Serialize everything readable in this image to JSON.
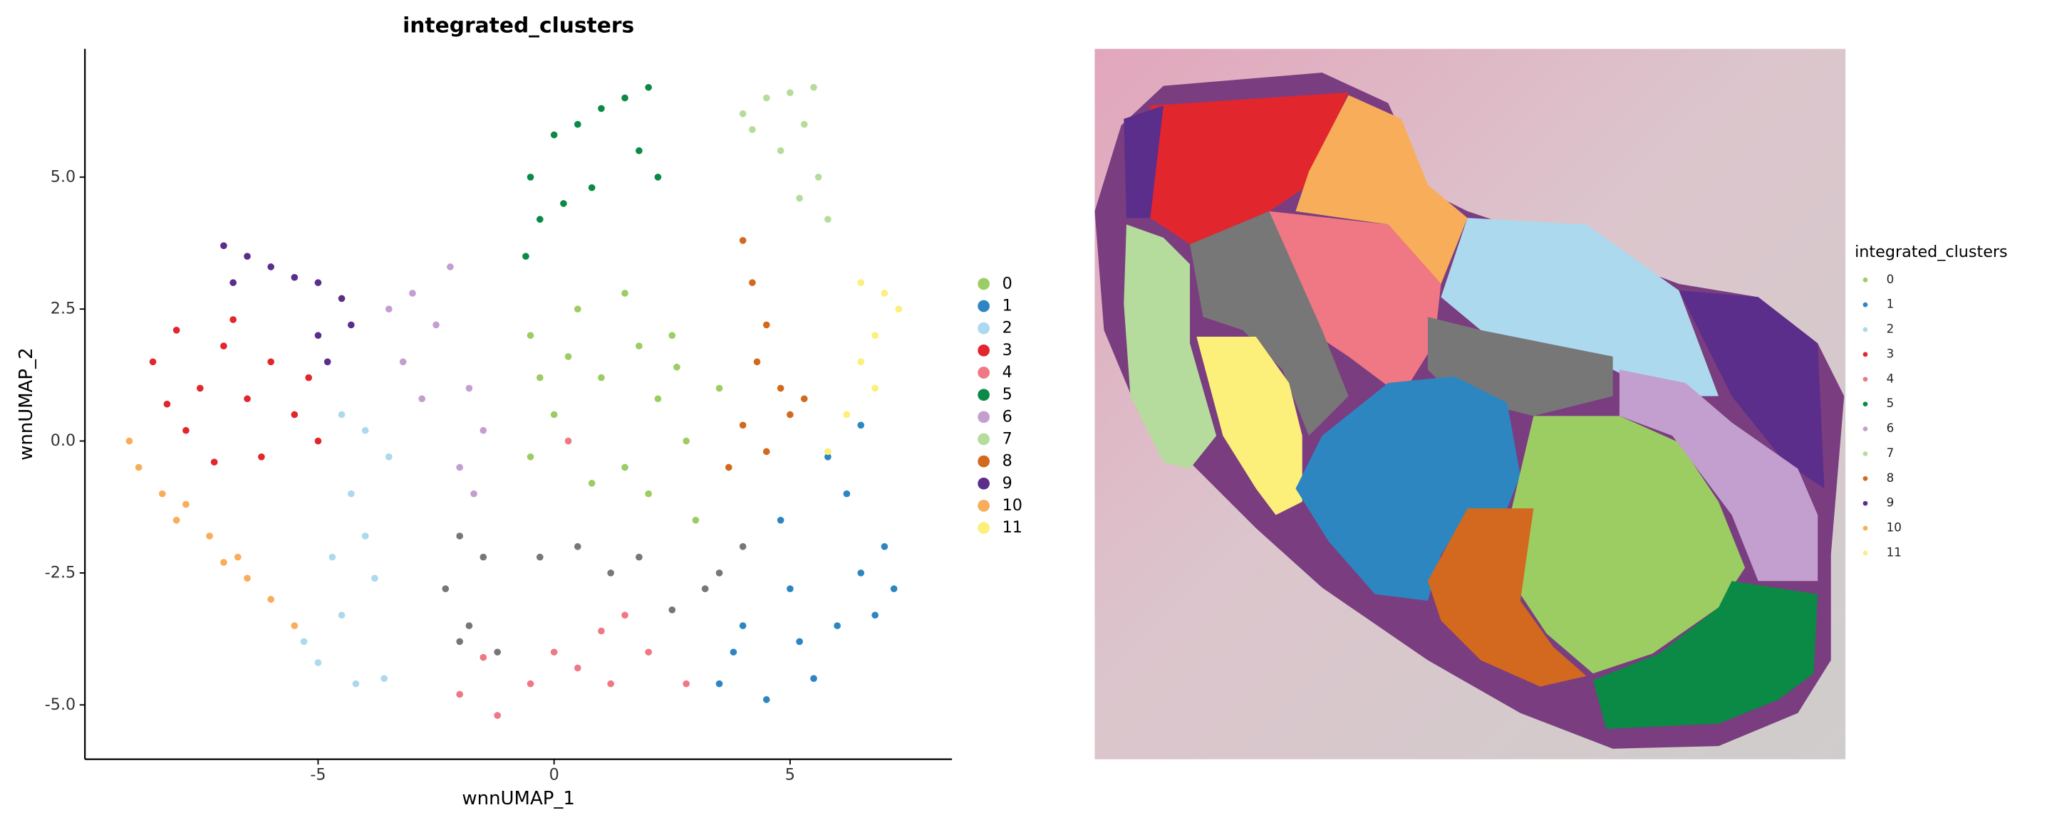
{
  "chart_data": [
    {
      "type": "scatter",
      "title": "integrated_clusters",
      "x_label": "wnnUMAP_1",
      "y_label": "wnnUMAP_2",
      "xlim": [
        -9.94,
        8.43
      ],
      "ylim": [
        -6.03,
        7.43
      ],
      "xticks": [
        -5,
        0,
        5
      ],
      "yticks": [
        {
          "value": 5,
          "label": "5.0"
        },
        2.5,
        {
          "value": 0,
          "label": "0.0"
        },
        -2.5,
        {
          "value": -5,
          "label": "-5.0"
        }
      ],
      "series": [
        {
          "name": "0",
          "color": "#9bcd63",
          "x": [
            -0.5,
            0.5,
            1.5,
            2.5,
            3.5,
            2.8,
            1.5,
            0.0,
            -0.5,
            1.0,
            2.0,
            3.0,
            0.8,
            2.2,
            -0.3,
            1.8,
            0.3,
            2.6
          ],
          "y": [
            2.0,
            2.5,
            2.8,
            2.0,
            1.0,
            0.0,
            -0.5,
            0.5,
            -0.3,
            1.2,
            -1.0,
            -1.5,
            -0.8,
            0.8,
            1.2,
            1.8,
            1.6,
            1.4
          ]
        },
        {
          "name": "1",
          "color": "#2e86c1",
          "x": [
            3.5,
            4.5,
            5.5,
            6.0,
            6.5,
            7.0,
            6.2,
            5.0,
            4.0,
            3.8,
            5.2,
            6.8,
            5.8,
            4.8,
            6.5,
            7.2
          ],
          "y": [
            -4.6,
            -4.9,
            -4.5,
            -3.5,
            -2.5,
            -2.0,
            -1.0,
            -2.8,
            -3.5,
            -4.0,
            -3.8,
            -3.3,
            -0.3,
            -1.5,
            0.3,
            -2.8
          ]
        },
        {
          "name": "2",
          "color": "#acd9ed",
          "x": [
            -4.5,
            -4.0,
            -3.5,
            -4.3,
            -4.0,
            -3.8,
            -4.5,
            -5.0,
            -5.3,
            -4.7,
            -3.6,
            -4.2
          ],
          "y": [
            0.5,
            0.2,
            -0.3,
            -1.0,
            -1.8,
            -2.6,
            -3.3,
            -4.2,
            -3.8,
            -2.2,
            -4.5,
            -4.6
          ]
        },
        {
          "name": "3",
          "color": "#e2262d",
          "x": [
            -8.5,
            -8.0,
            -7.5,
            -7.0,
            -6.5,
            -6.0,
            -5.5,
            -5.0,
            -7.8,
            -6.8,
            -6.2,
            -5.2,
            -7.2,
            -8.2
          ],
          "y": [
            1.5,
            2.1,
            1.0,
            1.8,
            0.8,
            1.5,
            0.5,
            0.0,
            0.2,
            2.3,
            -0.3,
            1.2,
            -0.4,
            0.7
          ]
        },
        {
          "name": "4",
          "color": "#f07784",
          "x": [
            -2.0,
            -1.2,
            -0.5,
            0.5,
            1.0,
            1.5,
            2.0,
            2.8,
            -1.5,
            0.0,
            1.2,
            0.3
          ],
          "y": [
            -4.8,
            -5.2,
            -4.6,
            -4.3,
            -3.6,
            -3.3,
            -4.0,
            -4.6,
            -4.1,
            -4.0,
            -4.6,
            0.0
          ]
        },
        {
          "name": "5",
          "color": "#0a8a45",
          "x": [
            -0.5,
            0.0,
            0.5,
            1.0,
            1.5,
            2.0,
            1.8,
            0.2,
            -0.3,
            0.8,
            2.2,
            -0.6
          ],
          "y": [
            5.0,
            5.8,
            6.0,
            6.3,
            6.5,
            6.7,
            5.5,
            4.5,
            4.2,
            4.8,
            5.0,
            3.5
          ]
        },
        {
          "name": "6",
          "color": "#c39fcf",
          "x": [
            -3.5,
            -3.0,
            -2.5,
            -3.2,
            -2.8,
            -1.8,
            -1.5,
            -2.0,
            -1.7,
            -2.2
          ],
          "y": [
            2.5,
            2.8,
            2.2,
            1.5,
            0.8,
            1.0,
            0.2,
            -0.5,
            -1.0,
            3.3
          ]
        },
        {
          "name": "7",
          "color": "#b5dc9c",
          "x": [
            4.0,
            4.5,
            5.0,
            5.3,
            5.6,
            5.2,
            5.8,
            4.8,
            4.2,
            5.5
          ],
          "y": [
            6.2,
            6.5,
            6.6,
            6.0,
            5.0,
            4.6,
            4.2,
            5.5,
            5.9,
            6.7
          ]
        },
        {
          "name": "8",
          "color": "#d2691e",
          "x": [
            4.0,
            4.2,
            4.5,
            4.3,
            4.8,
            5.0,
            5.3,
            4.5,
            3.7,
            4.0
          ],
          "y": [
            3.8,
            3.0,
            2.2,
            1.5,
            1.0,
            0.5,
            0.8,
            -0.2,
            -0.5,
            0.3
          ]
        },
        {
          "name": "9",
          "color": "#5a2e8a",
          "x": [
            -7.0,
            -6.5,
            -6.0,
            -5.5,
            -5.0,
            -4.5,
            -4.3,
            -5.0,
            -6.8,
            -4.8
          ],
          "y": [
            3.7,
            3.5,
            3.3,
            3.1,
            3.0,
            2.7,
            2.2,
            2.0,
            3.0,
            1.5
          ]
        },
        {
          "name": "10",
          "color": "#f8ad5a",
          "x": [
            -9.0,
            -8.8,
            -8.3,
            -7.8,
            -7.3,
            -7.0,
            -6.5,
            -6.0,
            -5.5,
            -8.0,
            -6.7
          ],
          "y": [
            0.0,
            -0.5,
            -1.0,
            -1.2,
            -1.8,
            -2.3,
            -2.6,
            -3.0,
            -3.5,
            -1.5,
            -2.2
          ]
        },
        {
          "name": "11",
          "color": "#fcef7a",
          "x": [
            6.5,
            7.0,
            7.3,
            6.8,
            6.5,
            6.8,
            6.2,
            5.8
          ],
          "y": [
            3.0,
            2.8,
            2.5,
            2.0,
            1.5,
            1.0,
            0.5,
            -0.2
          ]
        },
        {
          "color": "#777777",
          "x": [
            -2.0,
            -1.5,
            -2.3,
            -1.8,
            -1.2,
            -0.3,
            0.5,
            1.2,
            1.8,
            3.5,
            4.0,
            3.2,
            -2.0,
            2.5
          ],
          "y": [
            -1.8,
            -2.2,
            -2.8,
            -3.5,
            -4.0,
            -2.2,
            -2.0,
            -2.5,
            -2.2,
            -2.5,
            -2.0,
            -2.8,
            -3.8,
            -3.2
          ]
        }
      ]
    },
    {
      "type": "spatial",
      "legend_title": "integrated_clusters",
      "series": [
        {
          "name": "0",
          "color": "#9bcd63"
        },
        {
          "name": "1",
          "color": "#2e86c1"
        },
        {
          "name": "2",
          "color": "#acd9ed"
        },
        {
          "name": "3",
          "color": "#e2262d"
        },
        {
          "name": "4",
          "color": "#f07784"
        },
        {
          "name": "5",
          "color": "#0a8a45"
        },
        {
          "name": "6",
          "color": "#c39fcf"
        },
        {
          "name": "7",
          "color": "#b5dc9c"
        },
        {
          "name": "8",
          "color": "#d2691e"
        },
        {
          "name": "9",
          "color": "#5a2e8a"
        },
        {
          "name": "10",
          "color": "#f8ad5a"
        },
        {
          "name": "11",
          "color": "#fcef7a"
        },
        {
          "color": "#777777"
        }
      ]
    }
  ]
}
